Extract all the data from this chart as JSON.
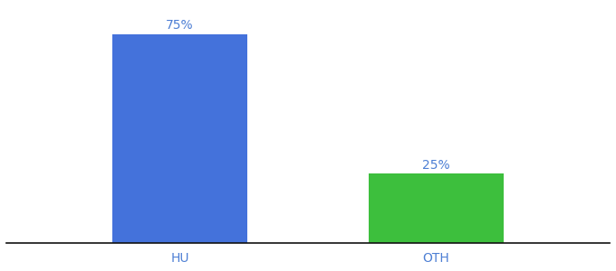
{
  "categories": [
    "HU",
    "OTH"
  ],
  "values": [
    75,
    25
  ],
  "bar_colors": [
    "#4472db",
    "#3dbf3d"
  ],
  "label_texts": [
    "75%",
    "25%"
  ],
  "tick_label_color": "#4d7fd4",
  "background_color": "#ffffff",
  "ylim": [
    0,
    85
  ],
  "bar_width": 0.18,
  "label_fontsize": 10,
  "tick_fontsize": 10,
  "spine_color": "#111111"
}
